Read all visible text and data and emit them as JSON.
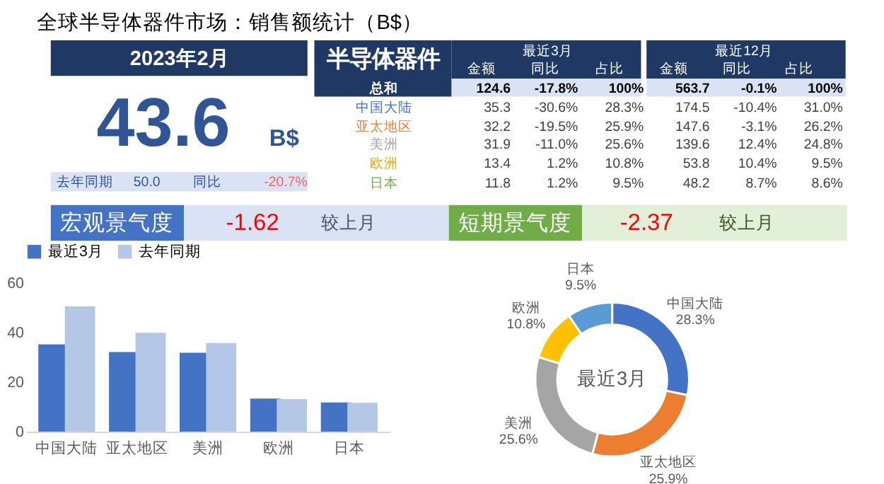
{
  "chart_data": [
    {
      "type": "other",
      "title": "全球半导体器件市场：销售额统计（B$）",
      "annotations": [
        "2023年2月",
        "43.6",
        "B$",
        "去年同期",
        "50.0",
        "同比",
        "-20.7%",
        "半导体器件",
        "最近3月",
        "最近12月",
        "金额",
        "同比",
        "占比",
        "金额",
        "同比",
        "占比",
        "总和",
        "124.6",
        "-17.8%",
        "100%",
        "563.7",
        "-0.1%",
        "100%",
        "中国大陆",
        "35.3",
        "-30.6%",
        "28.3%",
        "174.5",
        "-10.4%",
        "31.0%",
        "亚太地区",
        "32.2",
        "-19.5%",
        "25.9%",
        "147.6",
        "-3.1%",
        "26.2%",
        "美洲",
        "31.9",
        "-11.0%",
        "25.6%",
        "139.6",
        "12.4%",
        "24.8%",
        "欧洲",
        "13.4",
        "1.2%",
        "10.8%",
        "53.8",
        "10.4%",
        "9.5%",
        "日本",
        "11.8",
        "1.2%",
        "9.5%",
        "48.2",
        "8.7%",
        "8.6%",
        "宏观景气度",
        "-1.62",
        "较上月",
        "短期景气度",
        "-2.37",
        "较上月"
      ]
    },
    {
      "type": "bar",
      "categories": [
        "中国大陆",
        "亚太地区",
        "美洲",
        "欧洲",
        "日本"
      ],
      "series": [
        {
          "name": "最近3月",
          "color": "#4472c4",
          "values": [
            35.3,
            32.2,
            31.9,
            13.4,
            11.8
          ]
        },
        {
          "name": "去年同期",
          "color": "#b4c7e7",
          "values": [
            50.7,
            40.0,
            35.9,
            13.2,
            11.7
          ]
        }
      ],
      "ylim": [
        0,
        60
      ],
      "yticks": [
        0,
        20,
        40,
        60
      ],
      "grid": false,
      "legend": "top"
    },
    {
      "type": "donut",
      "categories": [
        "中国大陆",
        "亚太地区",
        "美洲",
        "欧洲",
        "日本"
      ],
      "values": [
        28.3,
        25.9,
        25.6,
        10.8,
        9.5
      ],
      "colors": [
        "#4472c4",
        "#ed7d31",
        "#a5a5a5",
        "#ffc000",
        "#5b9bd5"
      ],
      "value_labels": [
        "28.3%",
        "25.9%",
        "25.6%",
        "10.8%",
        "9.5%"
      ],
      "annotations": [
        "最近3月"
      ]
    }
  ]
}
